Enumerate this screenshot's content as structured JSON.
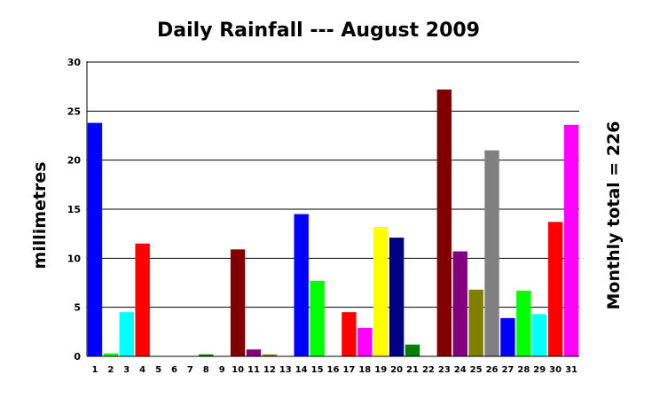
{
  "chart_data": {
    "type": "bar",
    "title": "Daily Rainfall --- August 2009",
    "xlabel": "",
    "ylabel": "millimetres",
    "right_annotation": "Monthly total = 226",
    "ylim": [
      0,
      30
    ],
    "yticks": [
      0,
      5,
      10,
      15,
      20,
      25,
      30
    ],
    "grid": "horizontal",
    "categories": [
      "1",
      "2",
      "3",
      "4",
      "5",
      "6",
      "7",
      "8",
      "9",
      "10",
      "11",
      "12",
      "13",
      "14",
      "15",
      "16",
      "17",
      "18",
      "19",
      "20",
      "21",
      "22",
      "23",
      "24",
      "25",
      "26",
      "27",
      "28",
      "29",
      "30",
      "31"
    ],
    "values": [
      23.8,
      0.3,
      4.5,
      11.5,
      0,
      0,
      0,
      0.2,
      0,
      10.9,
      0.7,
      0.2,
      0,
      14.5,
      7.7,
      0,
      4.5,
      2.9,
      13.2,
      12.1,
      1.2,
      0,
      27.2,
      10.7,
      6.8,
      21.0,
      3.9,
      6.7,
      4.3,
      13.7,
      23.6
    ],
    "colors": [
      "#0000ff",
      "#00ff00",
      "#00ffff",
      "#ff0000",
      "#800000",
      "#800080",
      "#808000",
      "#008000",
      "#0000ff",
      "#800000",
      "#800080",
      "#808000",
      "#808080",
      "#0000ff",
      "#00ff00",
      "#00ffff",
      "#ff0000",
      "#ff00ff",
      "#ffff00",
      "#000080",
      "#008000",
      "#008080",
      "#800000",
      "#800080",
      "#808000",
      "#808080",
      "#0000ff",
      "#00ff00",
      "#00ffff",
      "#ff0000",
      "#ff00ff"
    ]
  }
}
